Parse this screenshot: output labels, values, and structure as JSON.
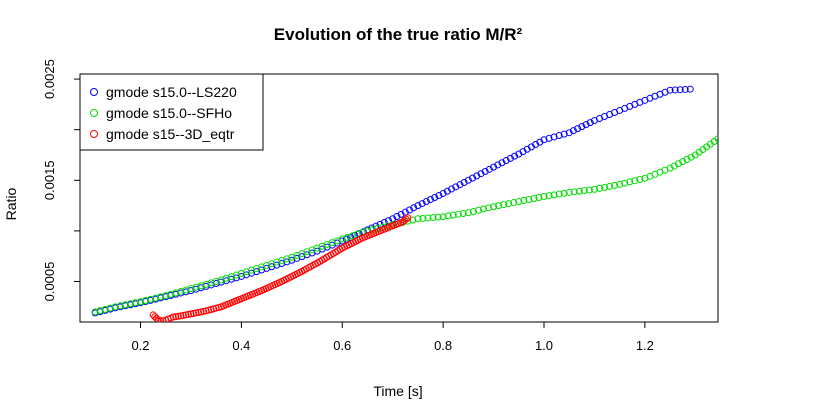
{
  "chart_data": {
    "type": "scatter",
    "title": "Evolution of the true ratio M/R²",
    "xlabel": "Time [s]",
    "ylabel": "Ratio",
    "xlim": [
      0.08,
      1.345
    ],
    "ylim": [
      0.0001,
      0.00255
    ],
    "x_ticks": [
      0.2,
      0.4,
      0.6,
      0.8,
      1.0,
      1.2
    ],
    "x_tick_labels": [
      "0.2",
      "0.4",
      "0.6",
      "0.8",
      "1.0",
      "1.2"
    ],
    "y_ticks": [
      0.0005,
      0.001,
      0.0015,
      0.002,
      0.0025
    ],
    "y_tick_labels": [
      "0.0005",
      "",
      "0.0015",
      "",
      "0.0025"
    ],
    "grid": false,
    "legend_position": "top-left",
    "marker": "open-circle",
    "series": [
      {
        "name": "gmode s15.0--LS220",
        "color": "#0000ff",
        "x": [
          0.11,
          0.15,
          0.2,
          0.25,
          0.3,
          0.35,
          0.4,
          0.45,
          0.5,
          0.55,
          0.6,
          0.65,
          0.7,
          0.75,
          0.8,
          0.85,
          0.9,
          0.95,
          1.0,
          1.05,
          1.1,
          1.15,
          1.2,
          1.25,
          1.29
        ],
        "y": [
          0.00019,
          0.00024,
          0.00029,
          0.00035,
          0.00041,
          0.00048,
          0.00055,
          0.00063,
          0.00071,
          0.0008,
          0.0009,
          0.00101,
          0.00112,
          0.00125,
          0.00137,
          0.0015,
          0.00163,
          0.00176,
          0.0019,
          0.00197,
          0.00209,
          0.00219,
          0.00229,
          0.00239,
          0.0024
        ]
      },
      {
        "name": "gmode s15.0--SFHo",
        "color": "#00dd00",
        "x": [
          0.11,
          0.15,
          0.2,
          0.25,
          0.3,
          0.35,
          0.4,
          0.45,
          0.5,
          0.55,
          0.6,
          0.65,
          0.7,
          0.75,
          0.8,
          0.85,
          0.9,
          0.95,
          1.0,
          1.05,
          1.1,
          1.15,
          1.2,
          1.25,
          1.3,
          1.345
        ],
        "y": [
          0.0002,
          0.00025,
          0.0003,
          0.00036,
          0.00043,
          0.0005,
          0.00058,
          0.00066,
          0.00074,
          0.00083,
          0.00092,
          0.001,
          0.00106,
          0.00112,
          0.00114,
          0.00118,
          0.00124,
          0.00129,
          0.00134,
          0.00138,
          0.00141,
          0.00146,
          0.00152,
          0.00162,
          0.00175,
          0.00191
        ]
      },
      {
        "name": "gmode s15--3D_eqtr",
        "color": "#ff0000",
        "x": [
          0.225,
          0.235,
          0.245,
          0.255,
          0.265,
          0.28,
          0.3,
          0.33,
          0.36,
          0.4,
          0.44,
          0.48,
          0.52,
          0.56,
          0.6,
          0.64,
          0.68,
          0.72,
          0.73
        ],
        "y": [
          0.00017,
          0.00012,
          0.00011,
          0.00013,
          0.00015,
          0.00016,
          0.00018,
          0.00021,
          0.00025,
          0.00033,
          0.00041,
          0.0005,
          0.0006,
          0.00071,
          0.00083,
          0.00093,
          0.00101,
          0.00109,
          0.00113
        ]
      }
    ]
  }
}
